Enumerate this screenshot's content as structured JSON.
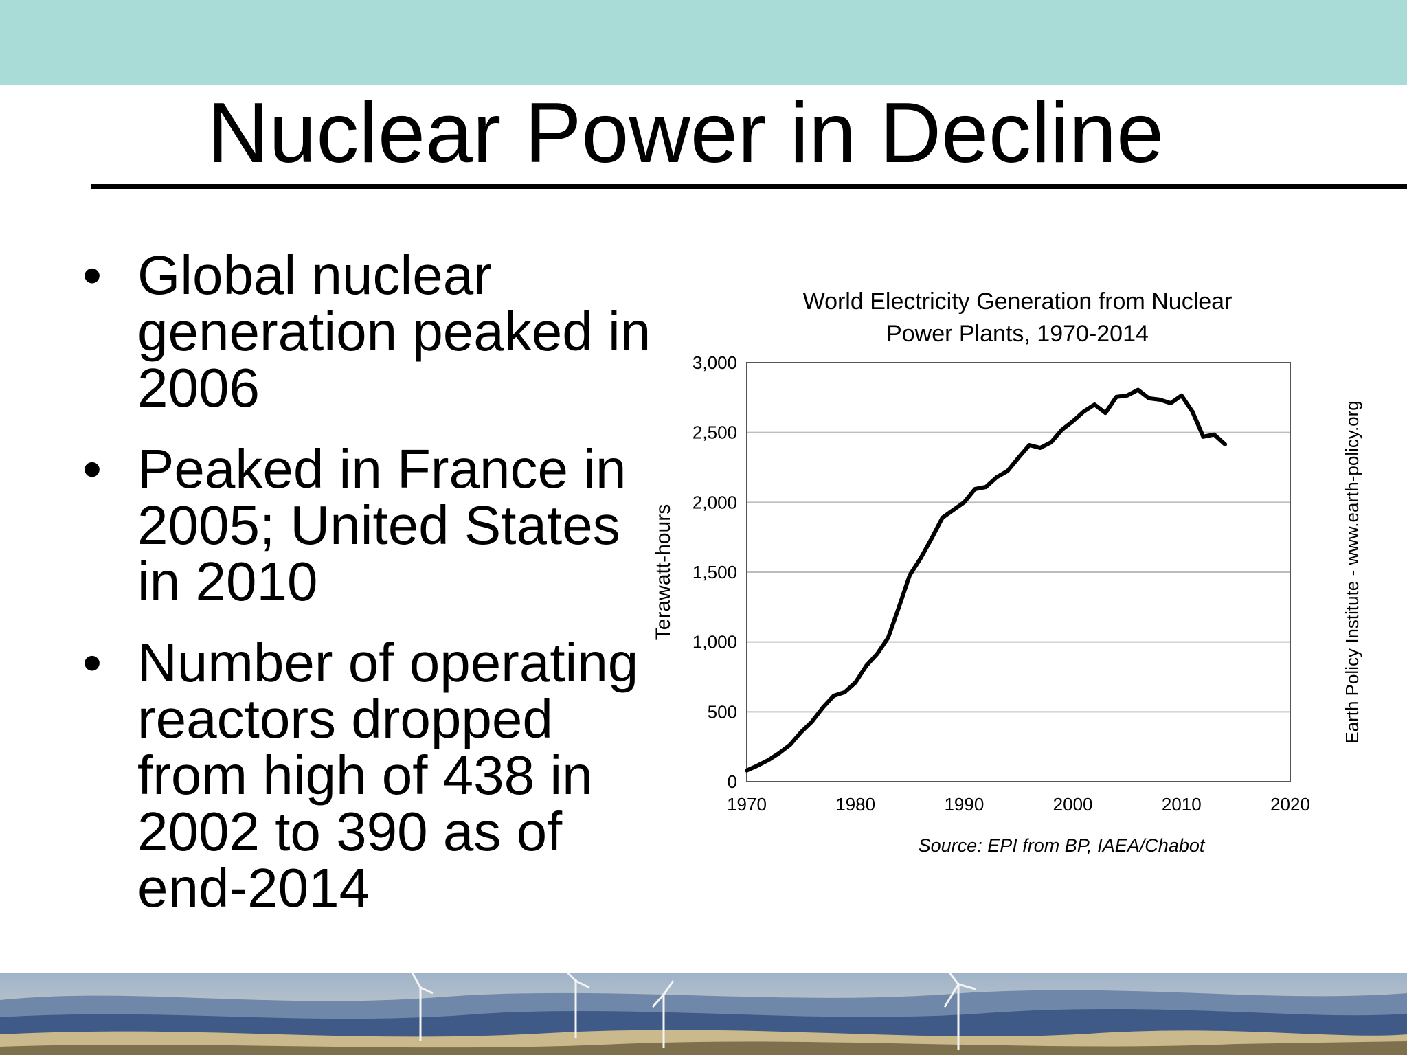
{
  "slide": {
    "title": "Nuclear Power in Decline",
    "bullets": [
      "Global nuclear generation peaked in 2006",
      "Peaked in France in 2005; United States in 2010",
      "Number of operating reactors dropped from high of 438 in 2002 to 390 as of end-2014"
    ],
    "bullet_symbol": "•"
  },
  "colors": {
    "top_band": "#a9dcd6",
    "line": "#000000",
    "grid": "#bdbdbd"
  },
  "chart_data": {
    "type": "line",
    "title_lines": [
      "World Electricity Generation from Nuclear",
      "Power Plants, 1970-2014"
    ],
    "ylabel": "Terawatt-hours",
    "xlabel": "",
    "source": "Source: EPI from BP, IAEA/Chabot",
    "side_note": "Earth Policy Institute - www.earth-policy.org",
    "xlim": [
      1970,
      2020
    ],
    "ylim": [
      0,
      3000
    ],
    "x_ticks": [
      "1970",
      "1980",
      "1990",
      "2000",
      "2010",
      "2020"
    ],
    "y_ticks": [
      "0",
      "500",
      "1,000",
      "1,500",
      "2,000",
      "2,500",
      "3,000"
    ],
    "grid": true,
    "legend": "none",
    "series": [
      {
        "x": [
          1970,
          1971,
          1972,
          1973,
          1974,
          1975,
          1976,
          1977,
          1978,
          1979,
          1980,
          1981,
          1982,
          1983,
          1984,
          1985,
          1986,
          1987,
          1988,
          1989,
          1990,
          1991,
          1992,
          1993,
          1994,
          1995,
          1996,
          1997,
          1998,
          1999,
          2000,
          2001,
          2002,
          2003,
          2004,
          2005,
          2006,
          2007,
          2008,
          2009,
          2010,
          2011,
          2012,
          2013,
          2014
        ],
        "values": [
          80,
          115,
          155,
          205,
          265,
          355,
          430,
          530,
          615,
          640,
          710,
          830,
          915,
          1030,
          1250,
          1480,
          1600,
          1740,
          1890,
          1945,
          2000,
          2095,
          2110,
          2180,
          2225,
          2320,
          2410,
          2390,
          2430,
          2520,
          2580,
          2650,
          2700,
          2640,
          2755,
          2765,
          2805,
          2745,
          2735,
          2710,
          2765,
          2650,
          2470,
          2485,
          2415
        ]
      }
    ]
  }
}
